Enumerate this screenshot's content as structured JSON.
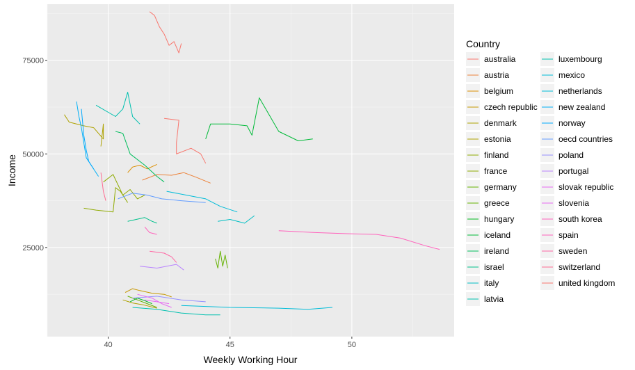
{
  "chart_data": {
    "type": "line",
    "xlabel": "Weekly Working Hour",
    "ylabel": "Income",
    "xlim": [
      37.5,
      54.2
    ],
    "ylim": [
      1200,
      90000
    ],
    "x_ticks": [
      40,
      45,
      50
    ],
    "y_ticks": [
      25000,
      50000,
      75000
    ],
    "x_tick_labels": [
      "40",
      "45",
      "50"
    ],
    "y_tick_labels": [
      "25000",
      "50000",
      "75000"
    ],
    "grid": true,
    "legend": {
      "title": "Country",
      "placement": "right",
      "columns": 2
    },
    "series": [
      {
        "name": "australia",
        "color": "#F8766D",
        "points": [
          [
            42.3,
            59500
          ],
          [
            42.9,
            59000
          ],
          [
            42.8,
            53000
          ],
          [
            42.8,
            50000
          ],
          [
            43.4,
            51500
          ],
          [
            43.8,
            50000
          ],
          [
            44.0,
            47500
          ]
        ]
      },
      {
        "name": "austria",
        "color": "#EC8239",
        "points": [
          [
            41.4,
            43000
          ],
          [
            42.0,
            44500
          ],
          [
            42.6,
            44300
          ],
          [
            43.1,
            45000
          ],
          [
            43.6,
            43800
          ],
          [
            44.2,
            42200
          ]
        ]
      },
      {
        "name": "belgium",
        "color": "#DB8E00",
        "points": [
          [
            40.8,
            45000
          ],
          [
            41.0,
            46500
          ],
          [
            41.3,
            47000
          ],
          [
            41.6,
            46000
          ],
          [
            42.0,
            47200
          ]
        ]
      },
      {
        "name": "czech republic",
        "color": "#C79800",
        "points": [
          [
            40.7,
            13000
          ],
          [
            41.0,
            14000
          ],
          [
            41.3,
            13500
          ],
          [
            41.8,
            12800
          ],
          [
            42.3,
            12500
          ],
          [
            42.6,
            11800
          ]
        ]
      },
      {
        "name": "denmark",
        "color": "#AEA200",
        "points": [
          [
            38.2,
            60500
          ],
          [
            38.4,
            58500
          ],
          [
            39.0,
            57500
          ],
          [
            39.4,
            57000
          ],
          [
            39.8,
            54000
          ],
          [
            39.8,
            58000
          ],
          [
            39.7,
            52000
          ]
        ]
      },
      {
        "name": "estonia",
        "color": "#AEA200",
        "points": [
          [
            40.6,
            11000
          ],
          [
            41.0,
            10200
          ],
          [
            41.5,
            9600
          ],
          [
            42.0,
            8800
          ]
        ]
      },
      {
        "name": "finland",
        "color": "#8FAA00",
        "points": [
          [
            39.8,
            42500
          ],
          [
            40.2,
            44500
          ],
          [
            40.6,
            39000
          ],
          [
            40.9,
            40500
          ],
          [
            41.2,
            38000
          ],
          [
            41.5,
            39000
          ]
        ]
      },
      {
        "name": "france",
        "color": "#8FAA00",
        "points": [
          [
            39.0,
            35500
          ],
          [
            39.5,
            35000
          ],
          [
            40.2,
            34500
          ],
          [
            40.3,
            41000
          ],
          [
            40.5,
            40000
          ],
          [
            40.8,
            37000
          ]
        ]
      },
      {
        "name": "germany",
        "color": "#64B200",
        "points": [
          [
            40.8,
            12000
          ],
          [
            41.2,
            11000
          ],
          [
            41.6,
            10000
          ],
          [
            42.0,
            9000
          ]
        ]
      },
      {
        "name": "greece",
        "color": "#64B200",
        "points": [
          [
            44.4,
            22000
          ],
          [
            44.5,
            19500
          ],
          [
            44.6,
            24000
          ],
          [
            44.7,
            20000
          ],
          [
            44.8,
            23000
          ],
          [
            44.9,
            19500
          ]
        ]
      },
      {
        "name": "hungary",
        "color": "#00B81F",
        "points": [
          [
            40.9,
            10500
          ],
          [
            41.2,
            11500
          ],
          [
            41.5,
            10800
          ],
          [
            41.8,
            10000
          ]
        ]
      },
      {
        "name": "iceland",
        "color": "#00BA38",
        "points": [
          [
            44.0,
            54000
          ],
          [
            44.2,
            58000
          ],
          [
            45.0,
            58000
          ],
          [
            45.7,
            57500
          ],
          [
            45.9,
            55000
          ],
          [
            46.2,
            65000
          ],
          [
            47.0,
            56000
          ],
          [
            47.8,
            53500
          ],
          [
            48.4,
            54000
          ]
        ]
      },
      {
        "name": "ireland",
        "color": "#00BD5C",
        "points": [
          [
            40.3,
            56000
          ],
          [
            40.6,
            55500
          ],
          [
            40.9,
            50000
          ],
          [
            41.5,
            47000
          ],
          [
            42.0,
            44000
          ],
          [
            42.3,
            42500
          ]
        ]
      },
      {
        "name": "israel",
        "color": "#00C08B",
        "points": [
          [
            40.8,
            32000
          ],
          [
            41.5,
            33000
          ],
          [
            41.8,
            32000
          ],
          [
            42.0,
            31500
          ]
        ]
      },
      {
        "name": "italy",
        "color": "#00BFC4",
        "points": [
          [
            44.5,
            32000
          ],
          [
            45.0,
            32500
          ],
          [
            45.6,
            31500
          ],
          [
            46.0,
            33500
          ]
        ]
      },
      {
        "name": "latvia",
        "color": "#00C0AF",
        "points": [
          [
            41.0,
            9000
          ],
          [
            42.0,
            8500
          ],
          [
            43.0,
            7500
          ],
          [
            44.0,
            7000
          ],
          [
            44.6,
            7000
          ]
        ]
      },
      {
        "name": "luxembourg",
        "color": "#00C0AF",
        "points": [
          [
            39.5,
            63000
          ],
          [
            40.3,
            60000
          ],
          [
            40.6,
            62000
          ],
          [
            40.8,
            66500
          ],
          [
            41.0,
            60000
          ],
          [
            41.3,
            58000
          ]
        ]
      },
      {
        "name": "mexico",
        "color": "#00BCD8",
        "points": [
          [
            43.0,
            9500
          ],
          [
            45.0,
            9000
          ],
          [
            47.0,
            8800
          ],
          [
            48.2,
            8500
          ],
          [
            49.2,
            9000
          ]
        ]
      },
      {
        "name": "netherlands",
        "color": "#00BCD8",
        "points": [
          [
            42.4,
            40000
          ],
          [
            43.2,
            39000
          ],
          [
            44.0,
            38000
          ],
          [
            44.6,
            36000
          ],
          [
            45.3,
            34500
          ]
        ]
      },
      {
        "name": "new zealand",
        "color": "#00B0F6",
        "points": [
          [
            38.7,
            64000
          ],
          [
            38.8,
            60000
          ],
          [
            38.9,
            57000
          ],
          [
            39.0,
            53000
          ],
          [
            39.1,
            49000
          ],
          [
            39.3,
            47000
          ],
          [
            39.6,
            44000
          ]
        ]
      },
      {
        "name": "norway",
        "color": "#00A9FF",
        "points": [
          [
            38.9,
            62000
          ],
          [
            39.0,
            55000
          ],
          [
            39.1,
            51000
          ],
          [
            39.2,
            48000
          ],
          [
            39.4,
            46000
          ]
        ]
      },
      {
        "name": "oecd countries",
        "color": "#619CFF",
        "points": [
          [
            40.4,
            38000
          ],
          [
            41.0,
            39500
          ],
          [
            41.6,
            39000
          ],
          [
            42.2,
            38000
          ],
          [
            43.0,
            37500
          ],
          [
            44.0,
            37000
          ]
        ]
      },
      {
        "name": "poland",
        "color": "#9590FF",
        "points": [
          [
            41.0,
            11500
          ],
          [
            42.0,
            12000
          ],
          [
            43.0,
            11000
          ],
          [
            44.0,
            10500
          ]
        ]
      },
      {
        "name": "portugal",
        "color": "#B983FF",
        "points": [
          [
            41.3,
            20000
          ],
          [
            42.0,
            19500
          ],
          [
            42.8,
            20500
          ],
          [
            43.1,
            19000
          ]
        ]
      },
      {
        "name": "slovak republic",
        "color": "#E76BF3",
        "points": [
          [
            41.2,
            12500
          ],
          [
            41.8,
            11500
          ],
          [
            42.2,
            10000
          ],
          [
            42.6,
            9000
          ]
        ]
      },
      {
        "name": "slovenia",
        "color": "#E76BF3",
        "points": [
          [
            41.5,
            11000
          ],
          [
            42.0,
            10500
          ],
          [
            42.5,
            10000
          ]
        ]
      },
      {
        "name": "south korea",
        "color": "#FF62BC",
        "points": [
          [
            47.0,
            29500
          ],
          [
            48.5,
            29000
          ],
          [
            49.8,
            28700
          ],
          [
            51.0,
            28500
          ],
          [
            52.0,
            27500
          ],
          [
            53.0,
            25500
          ],
          [
            53.6,
            24500
          ]
        ]
      },
      {
        "name": "spain",
        "color": "#FF62BC",
        "points": [
          [
            41.5,
            30500
          ],
          [
            41.7,
            29000
          ],
          [
            42.0,
            28500
          ]
        ]
      },
      {
        "name": "sweden",
        "color": "#FF67A4",
        "points": [
          [
            41.7,
            24000
          ],
          [
            42.3,
            23500
          ],
          [
            42.6,
            22500
          ],
          [
            42.8,
            21000
          ]
        ]
      },
      {
        "name": "switzerland",
        "color": "#FF6C91",
        "points": [
          [
            39.7,
            45000
          ],
          [
            39.8,
            40000
          ],
          [
            39.9,
            37500
          ]
        ]
      },
      {
        "name": "united kingdom",
        "color": "#F8766D",
        "points": [
          [
            41.7,
            88000
          ],
          [
            41.9,
            87000
          ],
          [
            42.1,
            84000
          ],
          [
            42.3,
            82000
          ],
          [
            42.5,
            79000
          ],
          [
            42.7,
            80000
          ],
          [
            42.9,
            77000
          ],
          [
            43.0,
            79500
          ]
        ]
      }
    ]
  }
}
